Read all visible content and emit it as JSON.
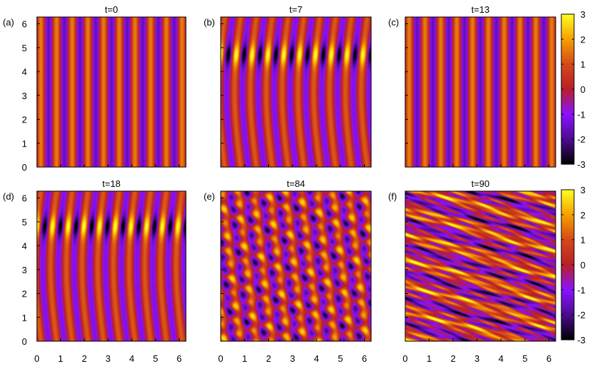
{
  "figure": {
    "panels": [
      {
        "label": "(a)",
        "title": "t=0"
      },
      {
        "label": "(b)",
        "title": "t=7"
      },
      {
        "label": "(c)",
        "title": "t=13"
      },
      {
        "label": "(d)",
        "title": "t=18"
      },
      {
        "label": "(e)",
        "title": "t=84"
      },
      {
        "label": "(f)",
        "title": "t=90"
      }
    ],
    "colorbars": [
      {
        "ticks": [
          "3",
          "2",
          "1",
          "0",
          "-1",
          "-2",
          "-3"
        ]
      },
      {
        "ticks": [
          "3",
          "2",
          "1",
          "0",
          "-1",
          "-2",
          "-3"
        ]
      }
    ]
  },
  "chart_data": {
    "type": "heatmap",
    "layout": "2x3 grid of panels",
    "colormap": [
      "#000000",
      "#4b0c8f",
      "#8a12ff",
      "#b81f28",
      "#d4491a",
      "#f5a000",
      "#ffff20"
    ],
    "xlim": [
      0,
      6.283
    ],
    "ylim": [
      0,
      6.283
    ],
    "zlim": [
      -3,
      3
    ],
    "x_ticks": [
      "0",
      "1",
      "2",
      "3",
      "4",
      "5",
      "6"
    ],
    "y_ticks": [
      "0",
      "1",
      "2",
      "3",
      "4",
      "5",
      "6"
    ],
    "panels": [
      {
        "title": "t=0",
        "pattern": "uniform vertical stripes"
      },
      {
        "title": "t=7",
        "pattern": "curved vertical stripes with strong extrema near y≈4.7"
      },
      {
        "title": "t=13",
        "pattern": "uniform vertical stripes"
      },
      {
        "title": "t=18",
        "pattern": "curved vertical stripes with strong extrema near y≈4.8"
      },
      {
        "title": "t=84",
        "pattern": "modulated stripes with blob structure"
      },
      {
        "title": "t=90",
        "pattern": "turbulent tilted streaks"
      }
    ]
  }
}
